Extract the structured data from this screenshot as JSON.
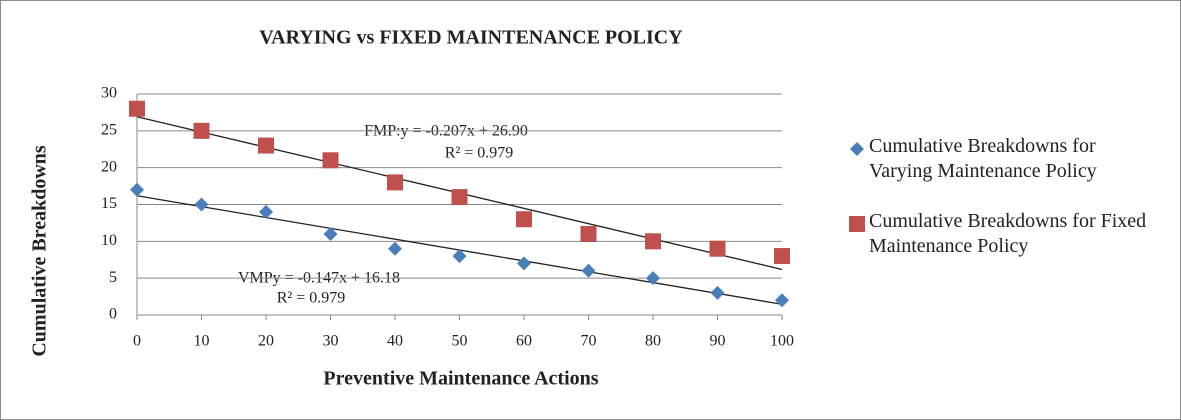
{
  "chart_data": {
    "type": "scatter",
    "title": "VARYING  vs FIXED MAINTENANCE POLICY",
    "xlabel": "Preventive Maintenance Actions",
    "ylabel": "Cumulative Breakdowns",
    "x": [
      0,
      10,
      20,
      30,
      40,
      50,
      60,
      70,
      80,
      90,
      100
    ],
    "series": [
      {
        "name": "Cumulative Breakdowns for Varying Maintenance Policy",
        "color": "#4a7ebb",
        "marker": "diamond",
        "values": [
          17,
          15,
          14,
          11,
          9,
          8,
          7,
          6,
          5,
          3,
          2
        ]
      },
      {
        "name": "Cumulative Breakdowns for Fixed Maintenance Policy",
        "color": "#c0504d",
        "marker": "square",
        "values": [
          28,
          25,
          23,
          21,
          18,
          16,
          13,
          11,
          10,
          9,
          8
        ]
      }
    ],
    "annotations": [
      "FMP:y = -0.207x + 26.90",
      "R² = 0.979",
      "VMPy = -0.147x + 16.18",
      "R² = 0.979"
    ],
    "trendline": true,
    "xlim": [
      0,
      100
    ],
    "xticks": [
      0,
      10,
      20,
      30,
      40,
      50,
      60,
      70,
      80,
      90,
      100
    ],
    "ylim": [
      0,
      30
    ],
    "yticks": [
      0,
      5,
      10,
      15,
      20,
      25,
      30
    ],
    "grid": true,
    "legend": "right"
  }
}
